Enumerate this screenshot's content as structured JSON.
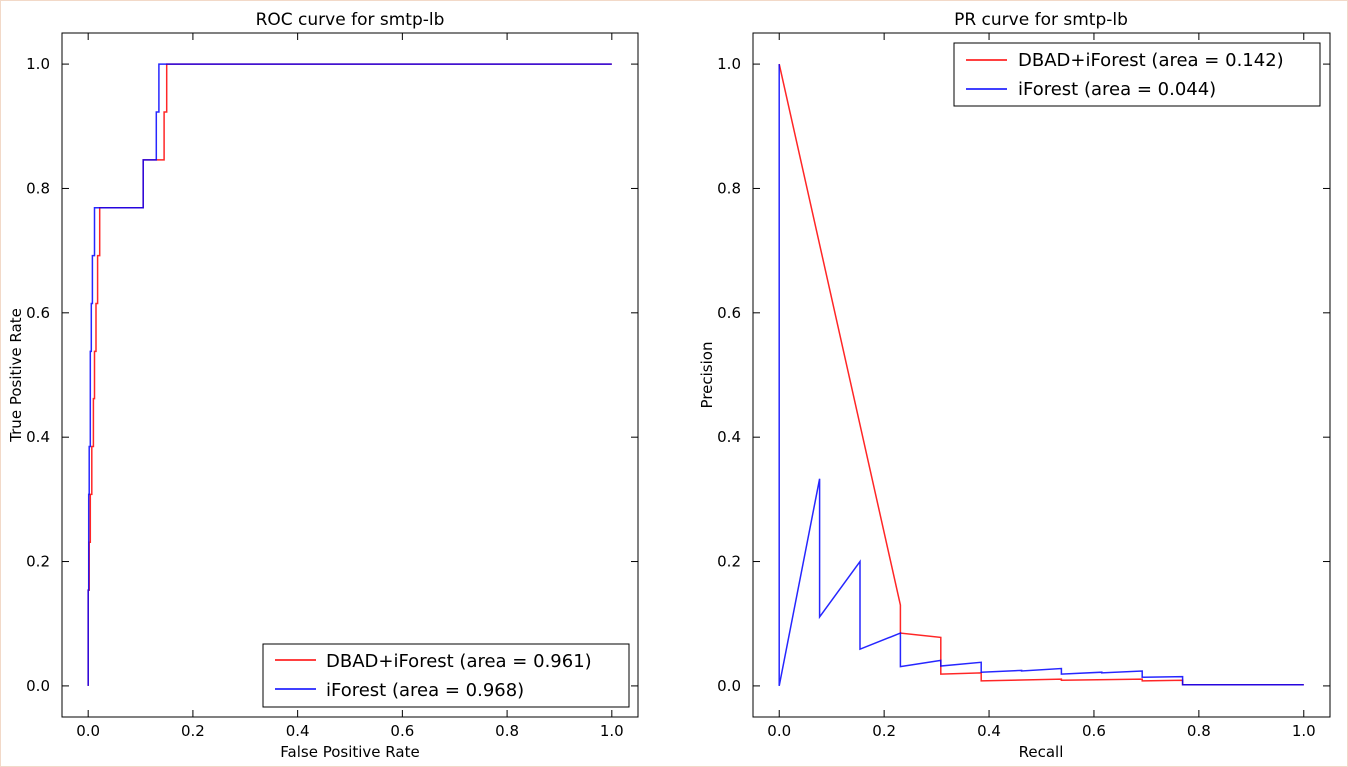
{
  "chart_data": [
    {
      "type": "line",
      "title": "ROC curve for smtp-lb",
      "xlabel": "False Positive Rate",
      "ylabel": "True Positive Rate",
      "xlim": [
        -0.05,
        1.05
      ],
      "ylim": [
        -0.05,
        1.05
      ],
      "xticks": [
        "0.0",
        "0.2",
        "0.4",
        "0.6",
        "0.8",
        "1.0"
      ],
      "yticks": [
        "0.0",
        "0.2",
        "0.4",
        "0.6",
        "0.8",
        "1.0"
      ],
      "legend_position": "lower-right",
      "series": [
        {
          "name": "DBAD+iForest (area = 0.961)",
          "color": "#ff0000",
          "x": [
            0,
            0,
            0.002,
            0.002,
            0.004,
            0.004,
            0.007,
            0.007,
            0.01,
            0.01,
            0.012,
            0.012,
            0.015,
            0.015,
            0.018,
            0.018,
            0.022,
            0.022,
            0.105,
            0.105,
            0.145,
            0.145,
            0.15,
            0.15,
            1.0
          ],
          "y": [
            0,
            0.154,
            0.154,
            0.231,
            0.231,
            0.308,
            0.308,
            0.385,
            0.385,
            0.462,
            0.462,
            0.538,
            0.538,
            0.615,
            0.615,
            0.692,
            0.692,
            0.769,
            0.769,
            0.846,
            0.846,
            0.923,
            0.923,
            1.0,
            1.0
          ]
        },
        {
          "name": "iForest (area = 0.968)",
          "color": "#0000ff",
          "x": [
            0,
            0,
            0.001,
            0.001,
            0.002,
            0.002,
            0.004,
            0.004,
            0.006,
            0.006,
            0.008,
            0.008,
            0.012,
            0.012,
            0.105,
            0.105,
            0.13,
            0.13,
            0.135,
            0.135,
            1.0
          ],
          "y": [
            0,
            0.154,
            0.154,
            0.308,
            0.308,
            0.385,
            0.385,
            0.538,
            0.538,
            0.615,
            0.615,
            0.692,
            0.692,
            0.769,
            0.769,
            0.846,
            0.846,
            0.923,
            0.923,
            1.0,
            1.0
          ]
        }
      ]
    },
    {
      "type": "line",
      "title": "PR curve for smtp-lb",
      "xlabel": "Recall",
      "ylabel": "Precision",
      "xlim": [
        -0.05,
        1.05
      ],
      "ylim": [
        -0.05,
        1.05
      ],
      "xticks": [
        "0.0",
        "0.2",
        "0.4",
        "0.6",
        "0.8",
        "1.0"
      ],
      "yticks": [
        "0.0",
        "0.2",
        "0.4",
        "0.6",
        "0.8",
        "1.0"
      ],
      "legend_position": "upper-right",
      "series": [
        {
          "name": "DBAD+iForest (area = 0.142)",
          "color": "#ff0000",
          "x": [
            0,
            0.231,
            0.231,
            0.308,
            0.308,
            0.385,
            0.385,
            0.538,
            0.538,
            0.692,
            0.692,
            0.769,
            0.769,
            1.0
          ],
          "y": [
            1.0,
            0.13,
            0.085,
            0.078,
            0.019,
            0.021,
            0.008,
            0.011,
            0.009,
            0.011,
            0.008,
            0.009,
            0.002,
            0.002
          ]
        },
        {
          "name": "iForest (area = 0.044)",
          "color": "#0000ff",
          "x": [
            0,
            0,
            0.077,
            0.077,
            0.154,
            0.154,
            0.231,
            0.231,
            0.308,
            0.308,
            0.385,
            0.385,
            0.462,
            0.462,
            0.538,
            0.538,
            0.615,
            0.615,
            0.692,
            0.692,
            0.769,
            0.769,
            0.846,
            1.0
          ],
          "y": [
            1.0,
            0.0,
            0.333,
            0.111,
            0.2,
            0.059,
            0.085,
            0.031,
            0.041,
            0.032,
            0.038,
            0.022,
            0.025,
            0.024,
            0.028,
            0.019,
            0.022,
            0.021,
            0.024,
            0.014,
            0.015,
            0.002,
            0.002,
            0.002
          ]
        }
      ]
    }
  ]
}
